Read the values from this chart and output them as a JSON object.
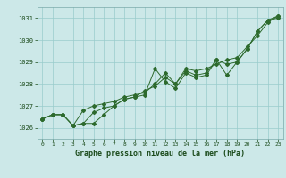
{
  "title": "Graphe pression niveau de la mer (hPa)",
  "background_color": "#cce8e8",
  "grid_color": "#99cccc",
  "line_color": "#2d6a2d",
  "marker_color": "#2d6a2d",
  "tick_color": "#1a4a1a",
  "hours": [
    0,
    1,
    2,
    3,
    4,
    5,
    6,
    7,
    8,
    9,
    10,
    11,
    12,
    13,
    14,
    15,
    16,
    17,
    18,
    19,
    20,
    21,
    22,
    23
  ],
  "series1": [
    1026.4,
    1026.6,
    1026.6,
    1026.1,
    1026.2,
    1026.2,
    1026.6,
    1027.0,
    1027.3,
    1027.4,
    1027.5,
    1028.7,
    1028.1,
    1027.8,
    1028.5,
    1028.3,
    1028.4,
    1029.1,
    1028.4,
    1029.0,
    1029.6,
    1030.4,
    1030.9,
    1031.0
  ],
  "series2": [
    1026.4,
    1026.6,
    1026.6,
    1026.1,
    1026.8,
    1027.0,
    1027.1,
    1027.2,
    1027.4,
    1027.5,
    1027.6,
    1028.0,
    1028.5,
    1028.0,
    1028.6,
    1028.4,
    1028.5,
    1029.1,
    1028.9,
    1029.0,
    1029.6,
    1030.4,
    1030.9,
    1031.1
  ],
  "series3": [
    1026.4,
    1026.6,
    1026.6,
    1026.1,
    1026.2,
    1026.7,
    1026.9,
    1027.0,
    1027.3,
    1027.4,
    1027.7,
    1027.9,
    1028.3,
    1028.0,
    1028.7,
    1028.6,
    1028.7,
    1028.9,
    1029.1,
    1029.2,
    1029.7,
    1030.2,
    1030.8,
    1031.1
  ],
  "ylim_min": 1025.5,
  "ylim_max": 1031.5,
  "yticks": [
    1026,
    1027,
    1028,
    1029,
    1030,
    1031
  ],
  "xlim_min": -0.5,
  "xlim_max": 23.5
}
